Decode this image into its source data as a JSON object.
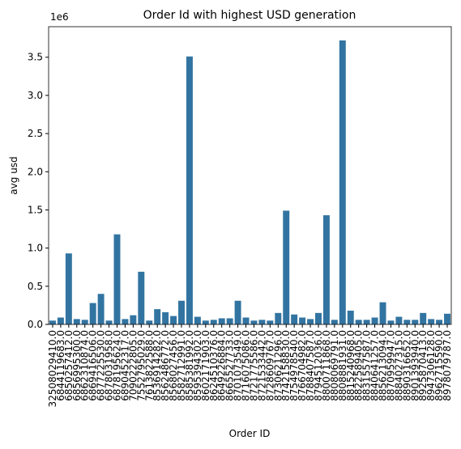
{
  "chart_data": {
    "type": "bar",
    "title": "Order Id with highest USD generation",
    "x_label": "Order ID",
    "y_label": "avg usd",
    "offset_label": "1e6",
    "color": "#3274a1",
    "categories": [
      "32508029410.0",
      "6844119683.0",
      "6850257412.0",
      "6856995300.0",
      "6862310874.0",
      "6869416506.0",
      "6877225530.0",
      "6878031958.0",
      "6878195624.0",
      "6890452317.0",
      "7090222805.0",
      "7552795029.0",
      "7613822588.0",
      "8536914282.0",
      "8562486772.0",
      "8568027456.0",
      "8582712991.0",
      "8585381992.0",
      "8595394302.0",
      "8602171903.0",
      "8624510376.0",
      "8649226884.0",
      "8665527733.0",
      "8701073549.0",
      "8716075086.0",
      "8721775586.0",
      "8721533442.0",
      "8728609767.0",
      "8730621296.0",
      "8742158830.0",
      "8754978540.0",
      "8766704982.0",
      "8788407587.0",
      "8794512036.0",
      "8800711868.0",
      "8808069791.0",
      "8808881931.0",
      "8815240968.0",
      "8822589405.0",
      "8831557587.0",
      "8840641257.0",
      "8856213094.0",
      "8870959947.0",
      "8884027315.0",
      "8890316652.0",
      "8901393940.0",
      "8925870413.0",
      "8947306128.0",
      "8962715590.0",
      "8978079787.0"
    ],
    "values": [
      50000,
      90000,
      930000,
      70000,
      60000,
      280000,
      400000,
      50000,
      1180000,
      70000,
      120000,
      690000,
      50000,
      200000,
      160000,
      110000,
      310000,
      3510000,
      100000,
      50000,
      60000,
      80000,
      80000,
      310000,
      90000,
      50000,
      60000,
      50000,
      150000,
      1490000,
      130000,
      90000,
      70000,
      150000,
      1430000,
      60000,
      3720000,
      180000,
      60000,
      60000,
      90000,
      290000,
      50000,
      100000,
      60000,
      60000,
      150000,
      70000,
      60000,
      140000
    ],
    "ylim": [
      0,
      3900000
    ],
    "yticks": [
      {
        "value": 0,
        "label": "0.0"
      },
      {
        "value": 500000,
        "label": "0.5"
      },
      {
        "value": 1000000,
        "label": "1.0"
      },
      {
        "value": 1500000,
        "label": "1.5"
      },
      {
        "value": 2000000,
        "label": "2.0"
      },
      {
        "value": 2500000,
        "label": "2.5"
      },
      {
        "value": 3000000,
        "label": "3.0"
      },
      {
        "value": 3500000,
        "label": "3.5"
      }
    ]
  }
}
